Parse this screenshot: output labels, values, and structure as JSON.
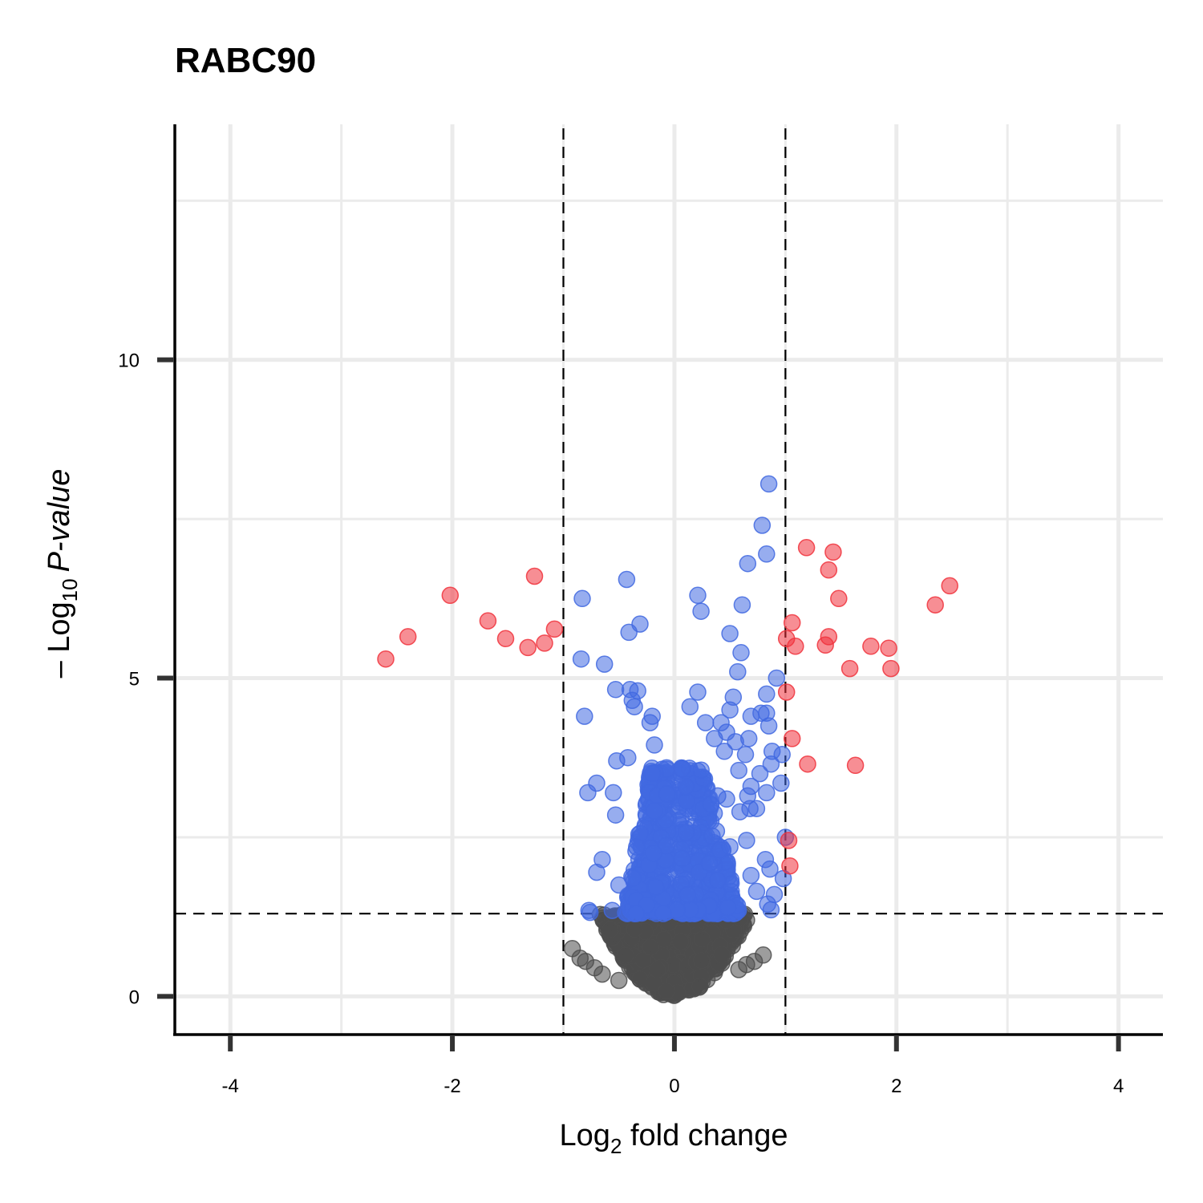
{
  "chart_data": {
    "type": "scatter",
    "title": "RABC90",
    "xlabel_main": "Log",
    "xlabel_sub": "2",
    "xlabel_rest": " fold change",
    "ylabel_prefix": "– Log",
    "ylabel_sub": "10",
    "ylabel_italic": "P-value",
    "xlim": [
      -4.5,
      4.4
    ],
    "ylim": [
      -0.6,
      13.7
    ],
    "x_ticks": [
      "-4",
      "-2",
      "0",
      "2",
      "4"
    ],
    "x_tick_values": [
      -4,
      -2,
      0,
      2,
      4
    ],
    "y_ticks": [
      "0",
      "5",
      "10"
    ],
    "y_tick_values": [
      0,
      5,
      10
    ],
    "cutoffs": {
      "fc": [
        -1,
        1
      ],
      "p": 1.3
    },
    "grid": true,
    "legend": "none",
    "colors": {
      "ns": "#4d4d4d",
      "p_only": "#4169e1",
      "p_and_fc": "#f0323c"
    },
    "series": [
      {
        "name": "",
        "color": "#4d4d4d",
        "density_cloud": {
          "x_halfwidth_at_p_cutoff": 0.68,
          "y_min": 0,
          "y_max": 1.3,
          "count": 900
        },
        "points": [
          [
            -0.92,
            0.75
          ],
          [
            -0.85,
            0.6
          ],
          [
            -0.8,
            0.55
          ],
          [
            -0.72,
            0.45
          ],
          [
            -0.65,
            0.35
          ],
          [
            0.72,
            0.55
          ],
          [
            0.65,
            0.5
          ],
          [
            0.58,
            0.42
          ],
          [
            0.8,
            0.65
          ],
          [
            -0.5,
            0.25
          ]
        ]
      },
      {
        "name": "",
        "color": "#4169e1",
        "density_cloud": {
          "x_left_range": [
            -0.45,
            -0.05
          ],
          "x_right_range": [
            0.02,
            0.6
          ],
          "y_min": 1.3,
          "y_max": 3.6,
          "count": 700
        },
        "points": [
          [
            0.85,
            8.05
          ],
          [
            0.79,
            7.4
          ],
          [
            0.83,
            6.95
          ],
          [
            0.66,
            6.8
          ],
          [
            -0.43,
            6.55
          ],
          [
            0.21,
            6.3
          ],
          [
            -0.83,
            6.25
          ],
          [
            0.61,
            6.15
          ],
          [
            0.24,
            6.05
          ],
          [
            -0.31,
            5.85
          ],
          [
            -0.41,
            5.72
          ],
          [
            0.5,
            5.7
          ],
          [
            -0.84,
            5.3
          ],
          [
            -0.63,
            5.22
          ],
          [
            0.6,
            5.4
          ],
          [
            0.57,
            5.1
          ],
          [
            0.92,
            5.0
          ],
          [
            -0.53,
            4.82
          ],
          [
            -0.4,
            4.82
          ],
          [
            -0.33,
            4.8
          ],
          [
            0.21,
            4.78
          ],
          [
            0.53,
            4.7
          ],
          [
            0.83,
            4.75
          ],
          [
            -0.38,
            4.65
          ],
          [
            -0.36,
            4.55
          ],
          [
            0.14,
            4.55
          ],
          [
            0.5,
            4.5
          ],
          [
            0.83,
            4.45
          ],
          [
            -0.81,
            4.4
          ],
          [
            0.78,
            4.45
          ],
          [
            0.69,
            4.4
          ],
          [
            -0.2,
            4.4
          ],
          [
            0.28,
            4.3
          ],
          [
            0.42,
            4.3
          ],
          [
            0.85,
            4.25
          ],
          [
            -0.22,
            4.3
          ],
          [
            0.47,
            4.15
          ],
          [
            0.36,
            4.05
          ],
          [
            0.67,
            4.05
          ],
          [
            0.55,
            4.0
          ],
          [
            -0.18,
            3.95
          ],
          [
            0.88,
            3.85
          ],
          [
            0.45,
            3.85
          ],
          [
            0.64,
            3.8
          ],
          [
            0.97,
            3.8
          ],
          [
            -0.52,
            3.7
          ],
          [
            -0.42,
            3.75
          ],
          [
            0.87,
            3.65
          ],
          [
            0.58,
            3.55
          ],
          [
            0.77,
            3.5
          ],
          [
            -0.7,
            3.35
          ],
          [
            -0.78,
            3.2
          ],
          [
            0.69,
            3.3
          ],
          [
            0.96,
            3.35
          ],
          [
            0.83,
            3.2
          ],
          [
            -0.55,
            3.2
          ],
          [
            0.66,
            3.15
          ],
          [
            0.39,
            3.15
          ],
          [
            0.47,
            3.1
          ],
          [
            0.68,
            2.95
          ],
          [
            -0.53,
            2.85
          ],
          [
            0.59,
            2.9
          ],
          [
            0.74,
            2.95
          ],
          [
            0.65,
            2.45
          ],
          [
            0.5,
            2.35
          ],
          [
            1.0,
            2.5
          ],
          [
            -0.65,
            2.15
          ],
          [
            0.82,
            2.15
          ],
          [
            -0.7,
            1.95
          ],
          [
            0.86,
            2.0
          ],
          [
            0.69,
            1.9
          ],
          [
            0.98,
            1.85
          ],
          [
            -0.5,
            1.75
          ],
          [
            0.74,
            1.65
          ],
          [
            0.9,
            1.6
          ],
          [
            -0.77,
            1.35
          ],
          [
            -0.76,
            1.32
          ],
          [
            -0.56,
            1.35
          ],
          [
            0.84,
            1.45
          ],
          [
            0.87,
            1.36
          ]
        ]
      },
      {
        "name": "",
        "color": "#f0323c",
        "points": [
          [
            -2.6,
            5.3
          ],
          [
            -2.4,
            5.65
          ],
          [
            -2.02,
            6.3
          ],
          [
            -1.68,
            5.9
          ],
          [
            -1.52,
            5.62
          ],
          [
            -1.32,
            5.48
          ],
          [
            -1.26,
            6.6
          ],
          [
            -1.17,
            5.55
          ],
          [
            -1.08,
            5.77
          ],
          [
            1.19,
            7.05
          ],
          [
            1.43,
            6.98
          ],
          [
            1.39,
            6.7
          ],
          [
            2.48,
            6.45
          ],
          [
            1.48,
            6.25
          ],
          [
            2.35,
            6.15
          ],
          [
            1.06,
            5.87
          ],
          [
            1.01,
            5.62
          ],
          [
            1.39,
            5.65
          ],
          [
            1.36,
            5.52
          ],
          [
            1.77,
            5.5
          ],
          [
            1.93,
            5.47
          ],
          [
            1.09,
            5.5
          ],
          [
            1.58,
            5.15
          ],
          [
            1.95,
            5.15
          ],
          [
            1.01,
            4.78
          ],
          [
            1.06,
            4.05
          ],
          [
            1.2,
            3.65
          ],
          [
            1.63,
            3.63
          ],
          [
            1.03,
            2.45
          ],
          [
            1.04,
            2.05
          ]
        ]
      }
    ]
  }
}
